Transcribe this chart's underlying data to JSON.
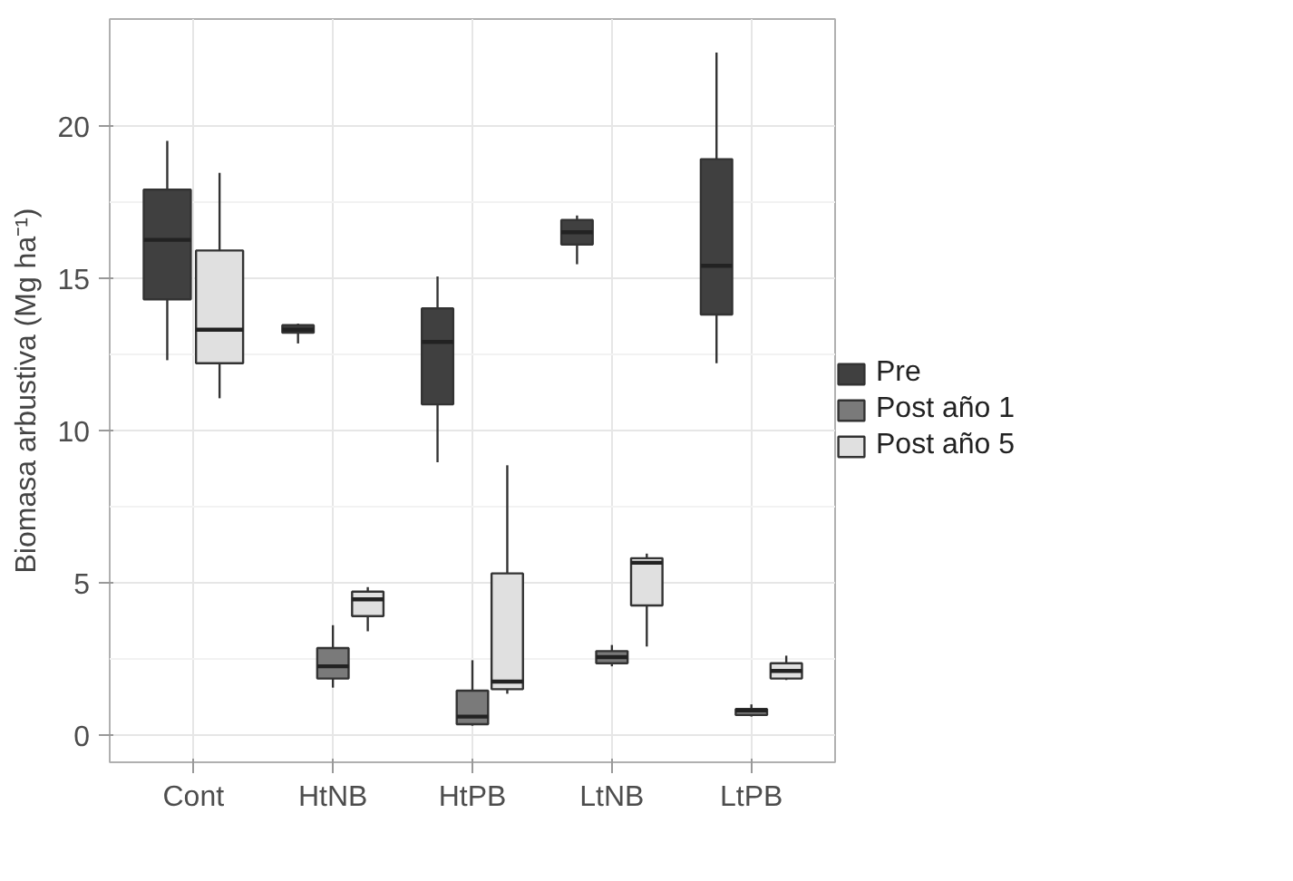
{
  "chart_data": {
    "type": "box",
    "ylabel": "Biomasa arbustiva (Mg ha⁻¹)",
    "categories": [
      "Cont",
      "HtNB",
      "HtPB",
      "LtNB",
      "LtPB"
    ],
    "ylim": [
      -0.9,
      23.5
    ],
    "yticks": [
      0,
      5,
      10,
      15,
      20
    ],
    "grid": true,
    "legend": "right",
    "series": [
      {
        "name": "Pre",
        "color": "#404040",
        "boxes": [
          {
            "low": 12.3,
            "q1": 14.3,
            "median": 16.25,
            "q3": 17.9,
            "high": 19.5
          },
          {
            "low": 12.85,
            "q1": 13.2,
            "median": 13.3,
            "q3": 13.45,
            "high": 13.5
          },
          {
            "low": 8.95,
            "q1": 10.85,
            "median": 12.9,
            "q3": 14.0,
            "high": 15.05
          },
          {
            "low": 15.45,
            "q1": 16.1,
            "median": 16.5,
            "q3": 16.9,
            "high": 17.05
          },
          {
            "low": 12.2,
            "q1": 13.8,
            "median": 15.4,
            "q3": 18.9,
            "high": 22.4
          }
        ]
      },
      {
        "name": "Post año 1",
        "color": "#7a7a7a",
        "boxes": [
          null,
          {
            "low": 1.55,
            "q1": 1.85,
            "median": 2.25,
            "q3": 2.85,
            "high": 3.6
          },
          {
            "low": 0.3,
            "q1": 0.35,
            "median": 0.6,
            "q3": 1.45,
            "high": 2.45
          },
          {
            "low": 2.25,
            "q1": 2.35,
            "median": 2.55,
            "q3": 2.75,
            "high": 2.95
          },
          {
            "low": 0.6,
            "q1": 0.65,
            "median": 0.8,
            "q3": 0.85,
            "high": 1.0
          }
        ]
      },
      {
        "name": "Post año 5",
        "color": "#e0e0e0",
        "boxes": [
          {
            "low": 11.05,
            "q1": 12.2,
            "median": 13.3,
            "q3": 15.9,
            "high": 18.45
          },
          {
            "low": 3.4,
            "q1": 3.9,
            "median": 4.45,
            "q3": 4.7,
            "high": 4.85
          },
          {
            "low": 1.35,
            "q1": 1.5,
            "median": 1.75,
            "q3": 5.3,
            "high": 8.85
          },
          {
            "low": 2.9,
            "q1": 4.25,
            "median": 5.65,
            "q3": 5.8,
            "high": 5.95
          },
          {
            "low": 1.8,
            "q1": 1.85,
            "median": 2.1,
            "q3": 2.35,
            "high": 2.6
          }
        ]
      }
    ]
  }
}
